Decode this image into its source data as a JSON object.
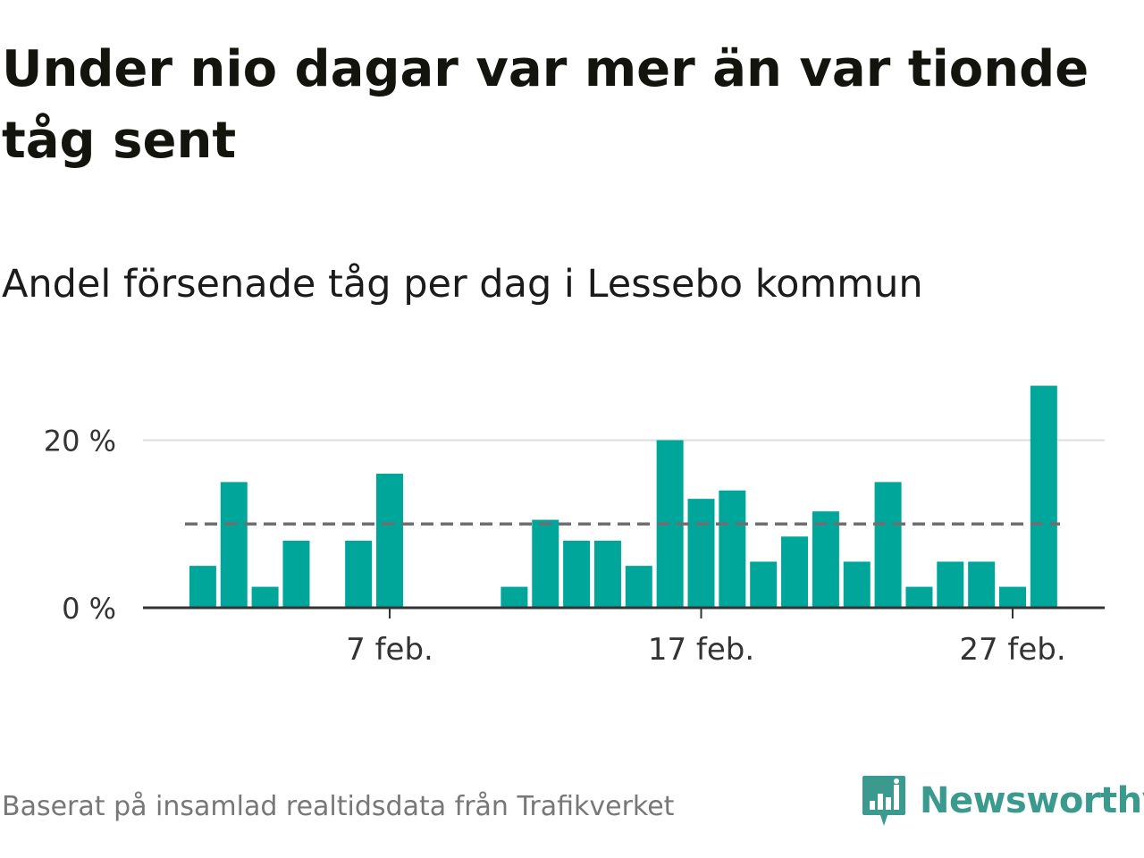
{
  "header": {
    "title": "Under nio dagar var mer än var tionde tåg sent",
    "subtitle": "Andel försenade tåg per dag i Lessebo kommun"
  },
  "footer": {
    "source": "Baserat på insamlad realtidsdata från Trafikverket",
    "brand": "Newsworthy",
    "brand_icon": "newsworthy-logo-icon"
  },
  "colors": {
    "bar": "#00a69a",
    "reference_line": "#6e6e73",
    "grid": "#dddddd",
    "axis": "#333333",
    "brand": "#3a9a8e"
  },
  "chart_data": {
    "type": "bar",
    "title": "Andel försenade tåg per dag i Lessebo kommun",
    "xlabel": "",
    "ylabel": "",
    "x_unit": "day of February",
    "x": [
      1,
      2,
      3,
      4,
      5,
      6,
      7,
      8,
      9,
      10,
      11,
      12,
      13,
      14,
      15,
      16,
      17,
      18,
      19,
      20,
      21,
      22,
      23,
      24,
      25,
      26,
      27,
      28
    ],
    "values": [
      5,
      15,
      2.5,
      8,
      0,
      8,
      16,
      0,
      0,
      0,
      2.5,
      10.5,
      8,
      8,
      5,
      20,
      13,
      14,
      5.5,
      8.5,
      11.5,
      5.5,
      15,
      2.5,
      5.5,
      5.5,
      2.5,
      26.5
    ],
    "ylim": [
      0,
      30
    ],
    "y_ticks": [
      {
        "value": 0,
        "label": "0 %"
      },
      {
        "value": 20,
        "label": "20 %"
      }
    ],
    "x_ticks": [
      {
        "value": 7,
        "label": "7 feb."
      },
      {
        "value": 17,
        "label": "17 feb."
      },
      {
        "value": 27,
        "label": "27 feb."
      }
    ],
    "reference_line": 10,
    "grid": true
  }
}
